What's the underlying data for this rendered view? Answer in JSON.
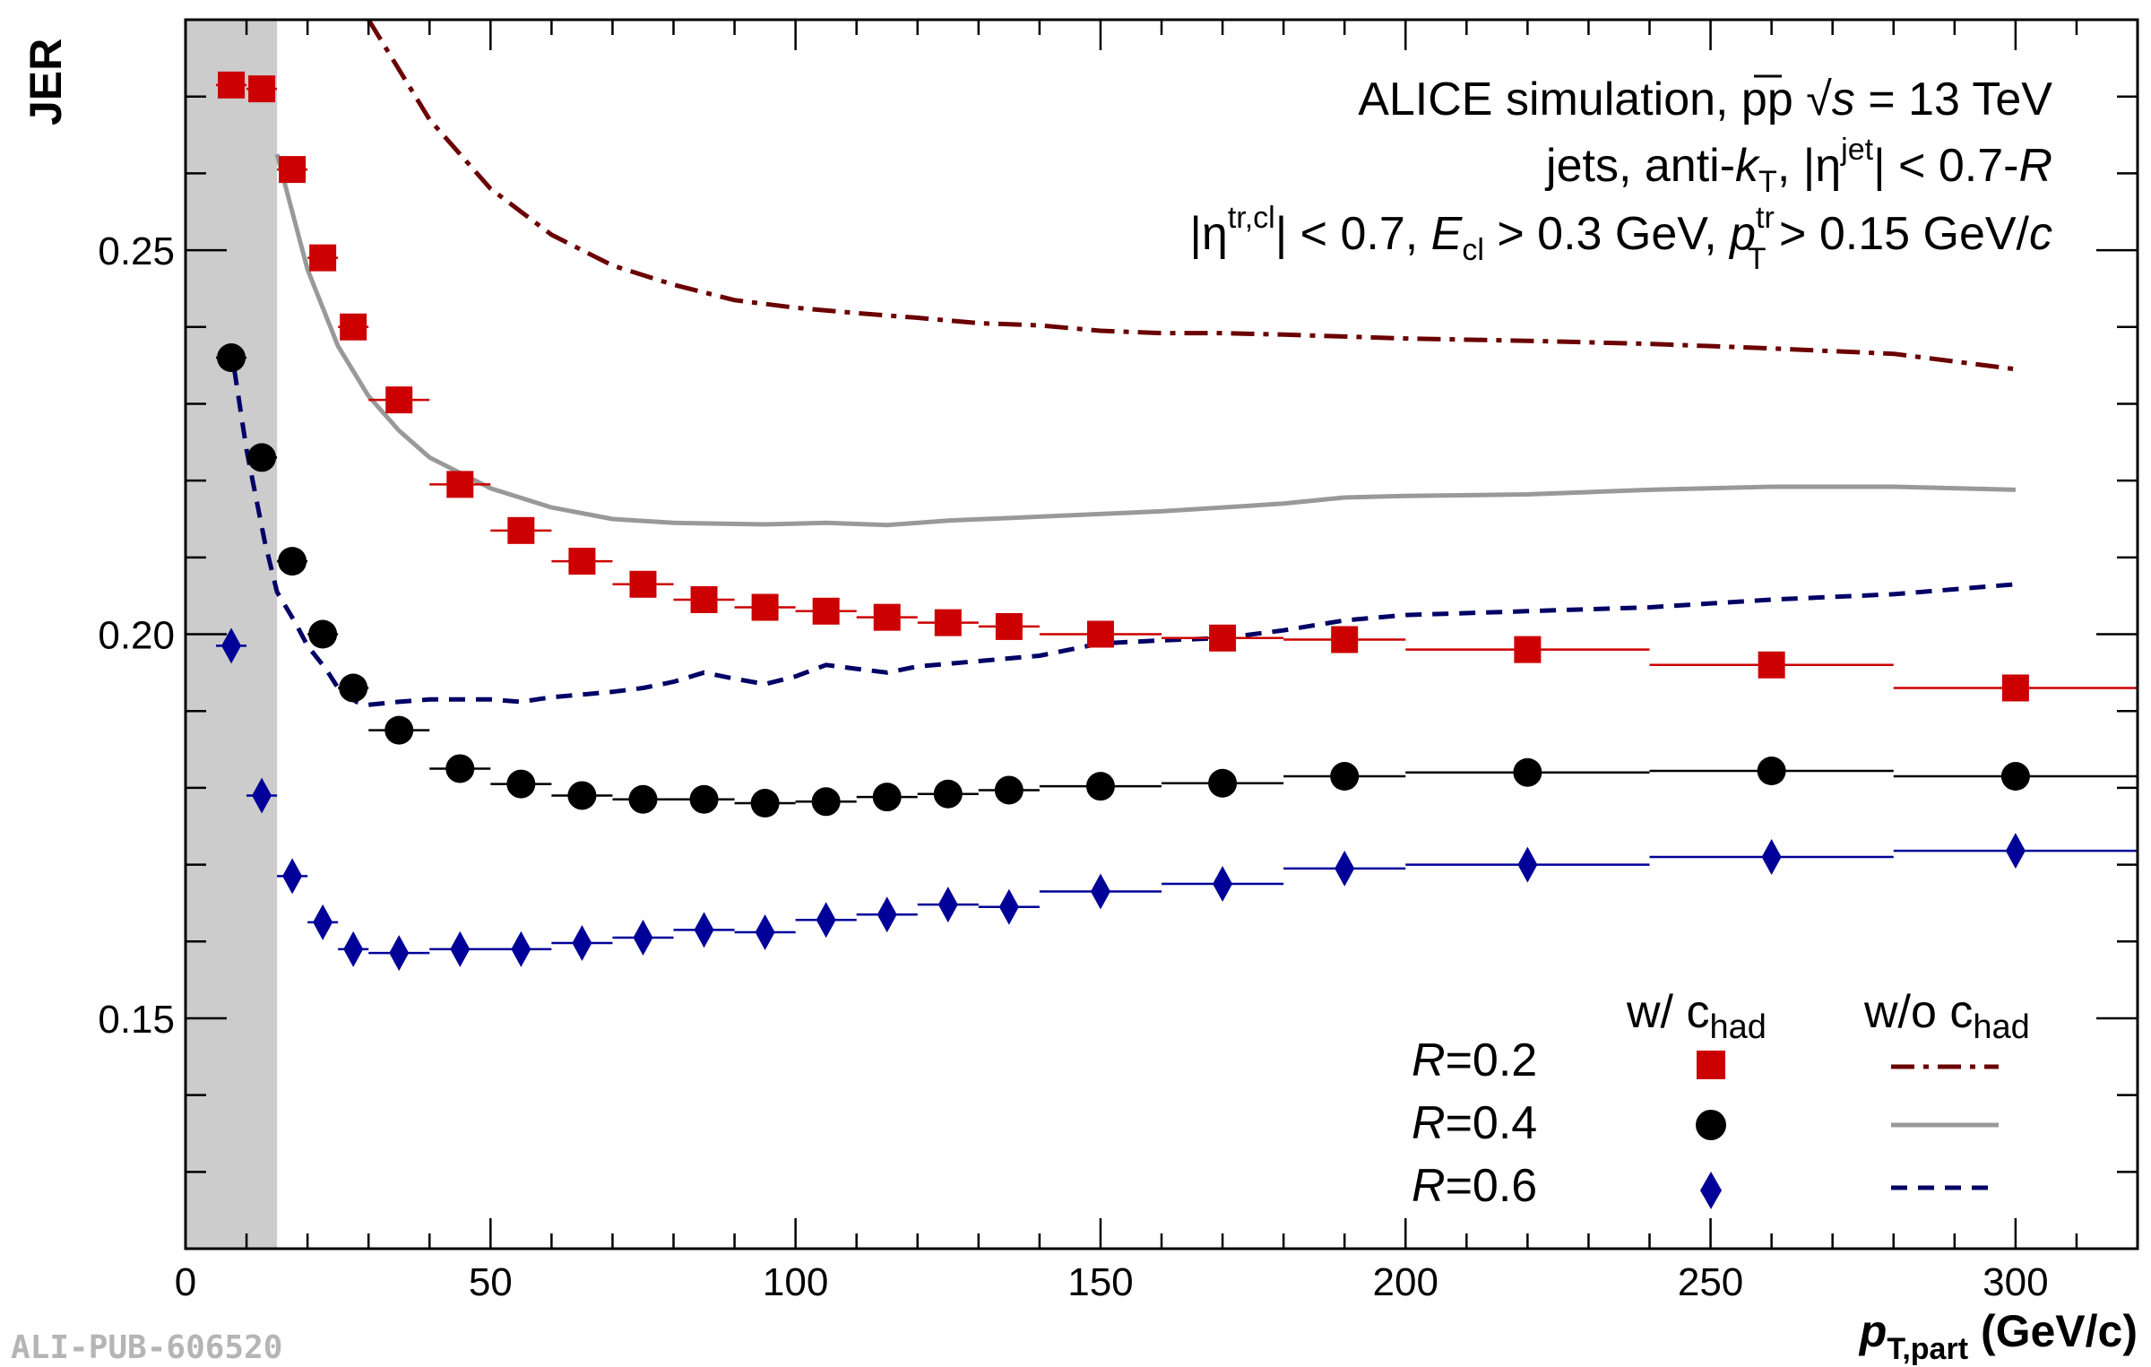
{
  "chart_data": {
    "type": "scatter",
    "ylabel": "JER",
    "xlabel_main": "p",
    "xlabel_sub": "T,part",
    "xlabel_unit": "(GeV/c)",
    "xlim": [
      0,
      320
    ],
    "ylim": [
      0.12,
      0.28
    ],
    "x_ticks": [
      0,
      50,
      100,
      150,
      200,
      250,
      300
    ],
    "x_tick_labels": [
      "0",
      "50",
      "100",
      "150",
      "200",
      "250",
      "300"
    ],
    "y_ticks": [
      0.15,
      0.2,
      0.25
    ],
    "y_tick_labels": [
      "0.15",
      "0.20",
      "0.25"
    ],
    "shaded_region_x": [
      0,
      15
    ],
    "annotations": {
      "line1": {
        "a": "ALICE simulation, pp ",
        "sqrt": "√",
        "s": "s",
        "b": " = 13 TeV"
      },
      "line2": {
        "a": "jets, anti-",
        "k": "k",
        "ksub": "T",
        "b": ", |η",
        "bsup": "jet",
        "c": "| < 0.7-",
        "r": "R"
      },
      "line3": {
        "a": "|η",
        "asup": "tr,cl",
        "b": "| < 0.7, ",
        "e": "E",
        "esub": "cl",
        "c": " > 0.3 GeV, ",
        "p": "p",
        "psup": "tr",
        "psub": "T",
        "d": " > 0.15 GeV/",
        "cc": "c"
      }
    },
    "legend": {
      "header_with": "w/ c",
      "header_with_sub": "had",
      "header_without": "w/o c",
      "header_without_sub": "had",
      "rows": [
        {
          "r_italic": "R",
          "r_val": "=0.2"
        },
        {
          "r_italic": "R",
          "r_val": "=0.4"
        },
        {
          "r_italic": "R",
          "r_val": "=0.6"
        }
      ]
    },
    "bins": [
      [
        5,
        10
      ],
      [
        10,
        15
      ],
      [
        15,
        20
      ],
      [
        20,
        25
      ],
      [
        25,
        30
      ],
      [
        30,
        40
      ],
      [
        40,
        50
      ],
      [
        50,
        60
      ],
      [
        60,
        70
      ],
      [
        70,
        80
      ],
      [
        80,
        90
      ],
      [
        90,
        100
      ],
      [
        100,
        110
      ],
      [
        110,
        120
      ],
      [
        120,
        130
      ],
      [
        130,
        140
      ],
      [
        140,
        160
      ],
      [
        160,
        180
      ],
      [
        180,
        200
      ],
      [
        200,
        240
      ],
      [
        240,
        280
      ],
      [
        280,
        320
      ]
    ],
    "series": [
      {
        "name": "R=0.2",
        "marker": "square",
        "color": "#cc0000",
        "values": [
          0.2715,
          0.271,
          0.2605,
          0.249,
          0.24,
          0.2305,
          0.2195,
          0.2135,
          0.2095,
          0.2065,
          0.2045,
          0.2035,
          0.203,
          0.2022,
          0.2015,
          0.201,
          0.2,
          0.1995,
          0.1993,
          0.198,
          0.196,
          0.193
        ]
      },
      {
        "name": "R=0.4",
        "marker": "circle",
        "color": "#000000",
        "values": [
          0.236,
          0.223,
          0.2095,
          0.2,
          0.193,
          0.1875,
          0.1825,
          0.1805,
          0.179,
          0.1785,
          0.1785,
          0.178,
          0.1782,
          0.1788,
          0.1792,
          0.1797,
          0.1802,
          0.1806,
          0.1815,
          0.182,
          0.1822,
          0.1815
        ]
      },
      {
        "name": "R=0.6",
        "marker": "diamond",
        "color": "#000099",
        "values": [
          0.1985,
          0.179,
          0.1685,
          0.1625,
          0.159,
          0.1585,
          0.159,
          0.159,
          0.1598,
          0.1605,
          0.1615,
          0.1612,
          0.1628,
          0.1635,
          0.1648,
          0.1645,
          0.1665,
          0.1675,
          0.1695,
          0.17,
          0.171,
          0.1718
        ]
      }
    ],
    "curves": [
      {
        "name": "R=0.2 w/o c_had",
        "style": "dash-dot",
        "color": "#6b0000",
        "x": [
          30,
          40,
          50,
          60,
          70,
          80,
          90,
          100,
          110,
          120,
          130,
          140,
          150,
          160,
          170,
          180,
          200,
          220,
          240,
          260,
          280,
          300
        ],
        "y": [
          0.28,
          0.267,
          0.258,
          0.252,
          0.248,
          0.2455,
          0.2435,
          0.2425,
          0.2418,
          0.2412,
          0.2405,
          0.2402,
          0.2395,
          0.2392,
          0.2392,
          0.239,
          0.2385,
          0.2382,
          0.2378,
          0.2372,
          0.2365,
          0.2345
        ]
      },
      {
        "name": "R=0.4 w/o c_had",
        "style": "solid",
        "color": "#999999",
        "x": [
          15,
          20,
          25,
          30,
          35,
          40,
          50,
          60,
          70,
          80,
          95,
          105,
          115,
          125,
          140,
          160,
          180,
          190,
          200,
          220,
          240,
          260,
          280,
          300
        ],
        "y": [
          0.2625,
          0.2475,
          0.2375,
          0.231,
          0.2265,
          0.223,
          0.219,
          0.2165,
          0.215,
          0.2145,
          0.2143,
          0.2145,
          0.2142,
          0.2148,
          0.2153,
          0.216,
          0.217,
          0.2178,
          0.218,
          0.2182,
          0.2188,
          0.2192,
          0.2192,
          0.2188
        ]
      },
      {
        "name": "R=0.6 w/o c_had",
        "style": "dashed",
        "color": "#000066",
        "x": [
          8,
          10,
          13,
          15,
          18,
          20,
          23,
          25,
          28,
          30,
          35,
          40,
          50,
          55,
          60,
          70,
          75,
          80,
          85,
          90,
          95,
          100,
          105,
          110,
          115,
          120,
          130,
          140,
          150,
          160,
          170,
          180,
          190,
          200,
          220,
          240,
          260,
          280,
          300
        ],
        "y": [
          0.2345,
          0.224,
          0.212,
          0.2055,
          0.2015,
          0.1985,
          0.1955,
          0.193,
          0.1912,
          0.1908,
          0.1912,
          0.1915,
          0.1915,
          0.1912,
          0.1918,
          0.1925,
          0.193,
          0.1938,
          0.195,
          0.1942,
          0.1935,
          0.1945,
          0.196,
          0.1955,
          0.195,
          0.1958,
          0.1965,
          0.1972,
          0.1988,
          0.1992,
          0.1995,
          0.2005,
          0.2018,
          0.2025,
          0.203,
          0.2035,
          0.2045,
          0.2052,
          0.2065
        ]
      }
    ]
  },
  "watermark": "ALI-PUB-606520"
}
